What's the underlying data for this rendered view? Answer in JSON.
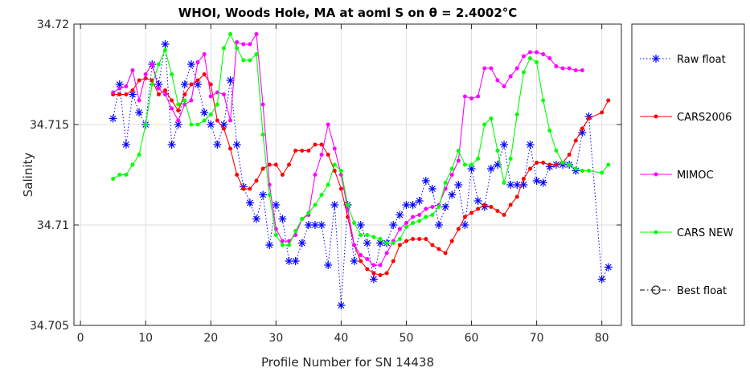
{
  "chart_data": {
    "type": "line",
    "title": "WHOI, Woods Hole, MA at aoml S on θ = 2.4002°C",
    "xlabel": "Profile Number for SN 14438",
    "ylabel": "Salinity",
    "xlim": [
      -1,
      83
    ],
    "ylim": [
      34.705,
      34.72
    ],
    "xticks": [
      0,
      10,
      20,
      30,
      40,
      50,
      60,
      70,
      80
    ],
    "yticks": [
      34.705,
      34.71,
      34.715,
      34.72
    ],
    "xtick_labels": [
      "0",
      "10",
      "20",
      "30",
      "40",
      "50",
      "60",
      "70",
      "80"
    ],
    "ytick_labels": [
      "34.705",
      "34.71",
      "34.715",
      "34.72"
    ],
    "grid": true,
    "legend_position": "outside-right",
    "series": [
      {
        "name": "Raw float",
        "color": "#0000ff",
        "marker": "asterisk",
        "line": "dotted",
        "x": [
          5,
          6,
          7,
          8,
          9,
          10,
          11,
          12,
          13,
          14,
          15,
          16,
          17,
          18,
          19,
          20,
          21,
          22,
          23,
          24,
          25,
          26,
          27,
          28,
          29,
          30,
          31,
          32,
          33,
          34,
          35,
          36,
          37,
          38,
          39,
          40,
          41,
          42,
          43,
          44,
          45,
          46,
          47,
          48,
          49,
          50,
          51,
          52,
          53,
          54,
          55,
          56,
          57,
          58,
          59,
          60,
          61,
          62,
          63,
          64,
          65,
          66,
          67,
          68,
          69,
          70,
          71,
          72,
          73,
          74,
          75,
          76,
          77,
          78,
          80,
          81
        ],
        "y": [
          34.7153,
          34.717,
          34.714,
          34.7165,
          34.7156,
          34.715,
          34.718,
          34.717,
          34.719,
          34.714,
          34.715,
          34.717,
          34.718,
          34.717,
          34.7156,
          34.715,
          34.714,
          34.715,
          34.7172,
          34.714,
          34.7119,
          34.7111,
          34.7103,
          34.7115,
          34.709,
          34.711,
          34.7103,
          34.7082,
          34.7082,
          34.7091,
          34.71,
          34.71,
          34.71,
          34.708,
          34.711,
          34.706,
          34.711,
          34.7082,
          34.71,
          34.7091,
          34.7073,
          34.7091,
          34.7091,
          34.71,
          34.7105,
          34.711,
          34.711,
          34.7112,
          34.7122,
          34.7118,
          34.71,
          34.7109,
          34.7115,
          34.712,
          34.71,
          34.7128,
          34.7112,
          34.7109,
          34.7128,
          34.713,
          34.714,
          34.712,
          34.712,
          34.712,
          34.714,
          34.7122,
          34.7121,
          34.7129,
          34.713,
          34.713,
          34.713,
          34.7127,
          34.7146,
          34.7154,
          34.7073,
          34.7079
        ]
      },
      {
        "name": "CARS2006",
        "color": "#ff0000",
        "marker": "dot",
        "line": "solid",
        "x": [
          5,
          6,
          7,
          8,
          9,
          10,
          11,
          12,
          13,
          14,
          15,
          16,
          17,
          18,
          19,
          20,
          21,
          22,
          23,
          24,
          25,
          26,
          27,
          28,
          29,
          30,
          31,
          32,
          33,
          34,
          35,
          36,
          37,
          38,
          39,
          40,
          41,
          42,
          43,
          44,
          45,
          46,
          47,
          48,
          49,
          50,
          51,
          52,
          53,
          54,
          55,
          56,
          57,
          58,
          59,
          60,
          61,
          62,
          63,
          64,
          65,
          66,
          67,
          68,
          69,
          70,
          71,
          72,
          73,
          74,
          75,
          76,
          77,
          78,
          80,
          81
        ],
        "y": [
          34.7165,
          34.7165,
          34.7165,
          34.7167,
          34.7172,
          34.7173,
          34.7172,
          34.7165,
          34.7167,
          34.7162,
          34.7157,
          34.7165,
          34.717,
          34.7172,
          34.7175,
          34.717,
          34.7152,
          34.7148,
          34.7138,
          34.7125,
          34.7118,
          34.7118,
          34.7122,
          34.7128,
          34.713,
          34.713,
          34.7125,
          34.713,
          34.7137,
          34.7137,
          34.7137,
          34.714,
          34.714,
          34.7135,
          34.7127,
          34.7118,
          34.7104,
          34.709,
          34.7082,
          34.7078,
          34.7076,
          34.7075,
          34.7076,
          34.7082,
          34.709,
          34.7092,
          34.7093,
          34.7093,
          34.7093,
          34.709,
          34.7088,
          34.7086,
          34.7092,
          34.7098,
          34.7104,
          34.7106,
          34.7108,
          34.711,
          34.7109,
          34.7107,
          34.7105,
          34.711,
          34.7114,
          34.7123,
          34.7128,
          34.7131,
          34.7131,
          34.713,
          34.713,
          34.7131,
          34.7135,
          34.7142,
          34.7148,
          34.7153,
          34.7156,
          34.7162
        ]
      },
      {
        "name": "MIMOC",
        "color": "#ff00ff",
        "marker": "dot",
        "line": "solid",
        "x": [
          5,
          6,
          7,
          8,
          9,
          10,
          11,
          12,
          13,
          14,
          15,
          16,
          17,
          18,
          19,
          20,
          21,
          22,
          23,
          24,
          25,
          26,
          27,
          28,
          29,
          30,
          31,
          32,
          33,
          34,
          35,
          36,
          37,
          38,
          39,
          40,
          41,
          42,
          43,
          44,
          45,
          46,
          47,
          48,
          49,
          50,
          51,
          52,
          53,
          54,
          55,
          56,
          57,
          58,
          59,
          60,
          61,
          62,
          63,
          64,
          65,
          66,
          67,
          68,
          69,
          70,
          71,
          72,
          73,
          74,
          75,
          76,
          77
        ],
        "y": [
          34.7166,
          34.7168,
          34.7169,
          34.7177,
          34.7162,
          34.7175,
          34.718,
          34.7168,
          34.7165,
          34.7158,
          34.7152,
          34.716,
          34.7162,
          34.7181,
          34.7185,
          34.7164,
          34.7166,
          34.7165,
          34.7152,
          34.7191,
          34.719,
          34.719,
          34.7195,
          34.716,
          34.712,
          34.7098,
          34.7092,
          34.7092,
          34.7095,
          34.7103,
          34.7105,
          34.7125,
          34.7135,
          34.715,
          34.7138,
          34.7125,
          34.7108,
          34.709,
          34.7085,
          34.7083,
          34.708,
          34.708,
          34.7086,
          34.7092,
          34.7098,
          34.7101,
          34.7104,
          34.7105,
          34.7108,
          34.7109,
          34.711,
          34.7118,
          34.7125,
          34.7132,
          34.7164,
          34.7163,
          34.7164,
          34.7178,
          34.7178,
          34.7172,
          34.7169,
          34.7174,
          34.7178,
          34.7184,
          34.7186,
          34.7186,
          34.7185,
          34.7183,
          34.7179,
          34.7178,
          34.7178,
          34.7177,
          34.7177
        ]
      },
      {
        "name": "CARS NEW",
        "color": "#00ff00",
        "marker": "dot",
        "line": "solid",
        "x": [
          5,
          6,
          7,
          8,
          9,
          10,
          11,
          12,
          13,
          14,
          15,
          16,
          17,
          18,
          19,
          20,
          21,
          22,
          23,
          24,
          25,
          26,
          27,
          28,
          29,
          30,
          31,
          32,
          33,
          34,
          35,
          36,
          37,
          38,
          39,
          40,
          41,
          42,
          43,
          44,
          45,
          46,
          47,
          48,
          49,
          50,
          51,
          52,
          53,
          54,
          55,
          56,
          57,
          58,
          59,
          60,
          61,
          62,
          63,
          64,
          65,
          66,
          67,
          68,
          69,
          70,
          71,
          72,
          73,
          74,
          75,
          76,
          77,
          78,
          80,
          81
        ],
        "y": [
          34.7123,
          34.7125,
          34.7125,
          34.713,
          34.7135,
          34.715,
          34.717,
          34.718,
          34.7187,
          34.7175,
          34.716,
          34.7162,
          34.715,
          34.715,
          34.7152,
          34.7155,
          34.716,
          34.7188,
          34.7195,
          34.7188,
          34.7182,
          34.7182,
          34.7185,
          34.7145,
          34.7115,
          34.7095,
          34.709,
          34.709,
          34.7097,
          34.7103,
          34.7106,
          34.711,
          34.7115,
          34.712,
          34.713,
          34.7127,
          34.711,
          34.7101,
          34.7095,
          34.7095,
          34.7094,
          34.7093,
          34.7091,
          34.7091,
          34.7093,
          34.7099,
          34.7101,
          34.7102,
          34.7104,
          34.7105,
          34.7109,
          34.7121,
          34.7128,
          34.7137,
          34.713,
          34.713,
          34.7133,
          34.715,
          34.7153,
          34.7137,
          34.7121,
          34.7133,
          34.7155,
          34.7176,
          34.7183,
          34.7181,
          34.7162,
          34.7147,
          34.7137,
          34.7131,
          34.713,
          34.7128,
          34.7127,
          34.7127,
          34.7126,
          34.713
        ]
      },
      {
        "name": "Best float",
        "color": "#000000",
        "marker": "circle",
        "line": "dashdot",
        "x": [],
        "y": []
      }
    ]
  }
}
